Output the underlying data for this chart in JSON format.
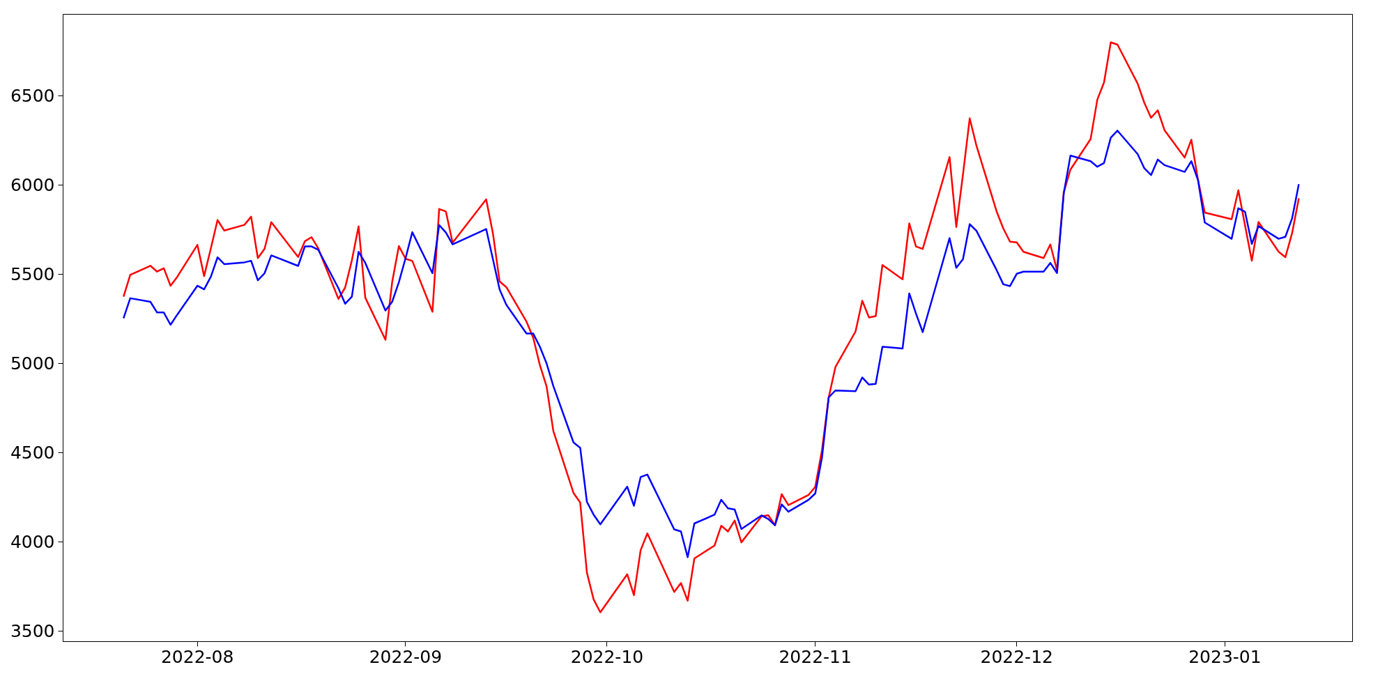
{
  "chart_data": {
    "type": "line",
    "x": [
      "2022-07-21",
      "2022-07-22",
      "2022-07-25",
      "2022-07-26",
      "2022-07-27",
      "2022-07-28",
      "2022-07-29",
      "2022-08-01",
      "2022-08-02",
      "2022-08-03",
      "2022-08-04",
      "2022-08-05",
      "2022-08-08",
      "2022-08-09",
      "2022-08-10",
      "2022-08-11",
      "2022-08-12",
      "2022-08-16",
      "2022-08-17",
      "2022-08-18",
      "2022-08-19",
      "2022-08-22",
      "2022-08-23",
      "2022-08-24",
      "2022-08-25",
      "2022-08-26",
      "2022-08-29",
      "2022-08-30",
      "2022-08-31",
      "2022-09-01",
      "2022-09-02",
      "2022-09-05",
      "2022-09-06",
      "2022-09-07",
      "2022-09-08",
      "2022-09-13",
      "2022-09-14",
      "2022-09-15",
      "2022-09-16",
      "2022-09-19",
      "2022-09-20",
      "2022-09-21",
      "2022-09-22",
      "2022-09-23",
      "2022-09-26",
      "2022-09-27",
      "2022-09-28",
      "2022-09-29",
      "2022-09-30",
      "2022-10-04",
      "2022-10-05",
      "2022-10-06",
      "2022-10-07",
      "2022-10-11",
      "2022-10-12",
      "2022-10-13",
      "2022-10-14",
      "2022-10-17",
      "2022-10-18",
      "2022-10-19",
      "2022-10-20",
      "2022-10-21",
      "2022-10-24",
      "2022-10-25",
      "2022-10-26",
      "2022-10-27",
      "2022-10-28",
      "2022-10-31",
      "2022-11-01",
      "2022-11-02",
      "2022-11-03",
      "2022-11-04",
      "2022-11-07",
      "2022-11-08",
      "2022-11-09",
      "2022-11-10",
      "2022-11-11",
      "2022-11-14",
      "2022-11-15",
      "2022-11-16",
      "2022-11-17",
      "2022-11-21",
      "2022-11-22",
      "2022-11-23",
      "2022-11-24",
      "2022-11-25",
      "2022-11-28",
      "2022-11-29",
      "2022-11-30",
      "2022-12-01",
      "2022-12-02",
      "2022-12-05",
      "2022-12-06",
      "2022-12-07",
      "2022-12-08",
      "2022-12-09",
      "2022-12-12",
      "2022-12-13",
      "2022-12-14",
      "2022-12-15",
      "2022-12-16",
      "2022-12-19",
      "2022-12-20",
      "2022-12-21",
      "2022-12-22",
      "2022-12-23",
      "2022-12-26",
      "2022-12-27",
      "2022-12-28",
      "2022-12-29",
      "2023-01-02",
      "2023-01-03",
      "2023-01-04",
      "2023-01-05",
      "2023-01-06",
      "2023-01-09",
      "2023-01-10",
      "2023-01-11",
      "2023-01-12"
    ],
    "series": [
      {
        "color": "#ff0000",
        "values": [
          5373,
          5495,
          5546,
          5513,
          5532,
          5434,
          5484,
          5663,
          5488,
          5643,
          5802,
          5743,
          5775,
          5821,
          5589,
          5641,
          5790,
          5595,
          5683,
          5706,
          5643,
          5360,
          5424,
          5576,
          5767,
          5367,
          5131,
          5454,
          5656,
          5585,
          5573,
          5288,
          5864,
          5850,
          5675,
          5918,
          5729,
          5458,
          5426,
          5233,
          5143,
          4989,
          4869,
          4620,
          4273,
          4219,
          3826,
          3676,
          3604,
          3817,
          3700,
          3952,
          4046,
          3718,
          3768,
          3669,
          3906,
          3978,
          4089,
          4057,
          4118,
          3996,
          4142,
          4148,
          4092,
          4266,
          4205,
          4262,
          4307,
          4512,
          4808,
          4978,
          5178,
          5350,
          5256,
          5264,
          5550,
          5470,
          5783,
          5654,
          5640,
          6155,
          5763,
          6059,
          6372,
          6219,
          5851,
          5755,
          5681,
          5677,
          5624,
          5589,
          5665,
          5520,
          5958,
          6085,
          6256,
          6477,
          6573,
          6798,
          6785,
          6567,
          6459,
          6375,
          6417,
          6306,
          6152,
          6252,
          6025,
          5844,
          5807,
          5969,
          5771,
          5574,
          5791,
          5624,
          5594,
          5728,
          5924
        ]
      },
      {
        "color": "#0000ff",
        "values": [
          5252,
          5364,
          5344,
          5284,
          5284,
          5215,
          5272,
          5434,
          5414,
          5484,
          5593,
          5555,
          5565,
          5574,
          5465,
          5504,
          5604,
          5545,
          5654,
          5654,
          5635,
          5420,
          5333,
          5373,
          5624,
          5562,
          5295,
          5344,
          5454,
          5589,
          5734,
          5504,
          5774,
          5732,
          5666,
          5752,
          5583,
          5413,
          5327,
          5166,
          5166,
          5092,
          4998,
          4872,
          4556,
          4526,
          4223,
          4151,
          4097,
          4308,
          4201,
          4362,
          4376,
          4069,
          4057,
          3913,
          4102,
          4151,
          4235,
          4187,
          4180,
          4071,
          4147,
          4127,
          4092,
          4209,
          4168,
          4234,
          4270,
          4471,
          4808,
          4847,
          4843,
          4920,
          4880,
          4884,
          5092,
          5082,
          5391,
          5278,
          5174,
          5701,
          5534,
          5583,
          5779,
          5742,
          5522,
          5442,
          5432,
          5501,
          5513,
          5513,
          5562,
          5505,
          5951,
          6163,
          6132,
          6101,
          6122,
          6263,
          6303,
          6172,
          6092,
          6054,
          6141,
          6110,
          6072,
          6132,
          6025,
          5788,
          5697,
          5868,
          5848,
          5668,
          5768,
          5697,
          5708,
          5811,
          6003
        ]
      }
    ],
    "xlim": [
      "2022-07-12",
      "2023-01-20"
    ],
    "xticks": [
      {
        "value": "2022-08-01",
        "label": "2022-08"
      },
      {
        "value": "2022-09-01",
        "label": "2022-09"
      },
      {
        "value": "2022-10-01",
        "label": "2022-10"
      },
      {
        "value": "2022-11-01",
        "label": "2022-11"
      },
      {
        "value": "2022-12-01",
        "label": "2022-12"
      },
      {
        "value": "2023-01-01",
        "label": "2023-01"
      }
    ],
    "ylim": [
      3440,
      6955
    ],
    "yticks": [
      3500,
      4000,
      4500,
      5000,
      5500,
      6000,
      6500
    ],
    "line_style": "solid"
  }
}
